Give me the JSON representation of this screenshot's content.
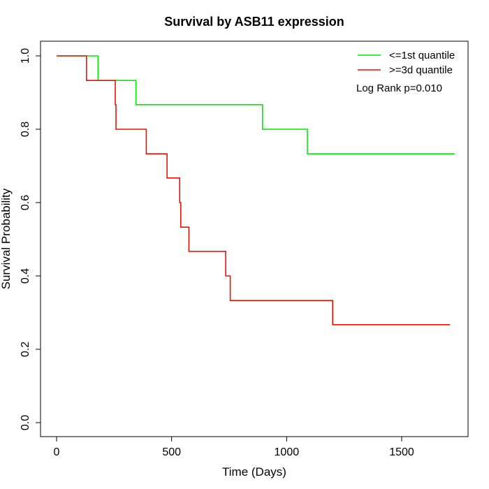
{
  "chart_data": {
    "type": "line",
    "title": "Survival by ASB11 expression",
    "xlabel": "Time (Days)",
    "ylabel": "Survival Probability",
    "xlim": [
      0,
      1730
    ],
    "ylim": [
      0,
      1
    ],
    "x_ticks": [
      0,
      500,
      1000,
      1500
    ],
    "x_tick_labels": [
      "0",
      "500",
      "1000",
      "1500"
    ],
    "y_ticks": [
      0,
      0.2,
      0.4,
      0.6,
      0.8,
      1.0
    ],
    "y_tick_labels": [
      "0.0",
      "0.2",
      "0.4",
      "0.6",
      "0.8",
      "1.0"
    ],
    "grid": false,
    "legend_position": "top-right",
    "annotation": "Log Rank p=0.010",
    "series": [
      {
        "name": "<=1st quantile",
        "color": "#00ee00",
        "steps": [
          [
            0,
            1.0
          ],
          [
            180,
            0.933
          ],
          [
            345,
            0.867
          ],
          [
            895,
            0.8
          ],
          [
            1090,
            0.733
          ],
          [
            1730,
            0.733
          ]
        ]
      },
      {
        "name": ">=3d quantile",
        "color": "#ee1100",
        "steps": [
          [
            0,
            1.0
          ],
          [
            130,
            0.933
          ],
          [
            255,
            0.867
          ],
          [
            258,
            0.8
          ],
          [
            390,
            0.733
          ],
          [
            480,
            0.667
          ],
          [
            535,
            0.6
          ],
          [
            540,
            0.533
          ],
          [
            575,
            0.467
          ],
          [
            735,
            0.4
          ],
          [
            755,
            0.333
          ],
          [
            1200,
            0.267
          ],
          [
            1710,
            0.267
          ]
        ]
      }
    ]
  }
}
